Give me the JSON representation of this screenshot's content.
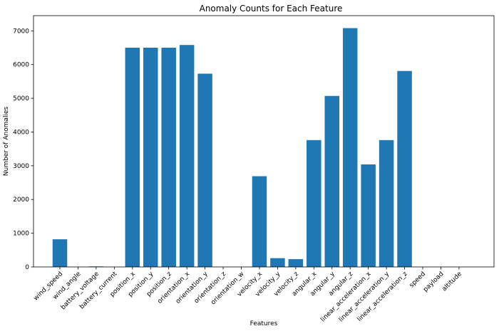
{
  "chart_data": {
    "type": "bar",
    "title": "Anomaly Counts for Each Feature",
    "xlabel": "Features",
    "ylabel": "Number of Anomalies",
    "ylim": [
      0,
      7450
    ],
    "yticks": [
      0,
      1000,
      2000,
      3000,
      4000,
      5000,
      6000,
      7000
    ],
    "grid": false,
    "bar_color": "#1f77b4",
    "categories": [
      "wind_speed",
      "wind_angle",
      "battery_voltage",
      "battery_current",
      "position_x",
      "position_y",
      "position_z",
      "orientation_x",
      "orientation_y",
      "orientation_z",
      "orientation_w",
      "velocity_x",
      "velocity_y",
      "velocity_z",
      "angular_x",
      "angular_y",
      "angular_z",
      "linear_acceleration_x",
      "linear_acceleration_y",
      "linear_acceleration_z",
      "speed",
      "payload",
      "altitude"
    ],
    "values": [
      820,
      0,
      15,
      0,
      6500,
      6500,
      6500,
      6580,
      5730,
      0,
      0,
      2690,
      260,
      230,
      3760,
      5070,
      7080,
      3040,
      3760,
      5810,
      0,
      0,
      0
    ]
  }
}
